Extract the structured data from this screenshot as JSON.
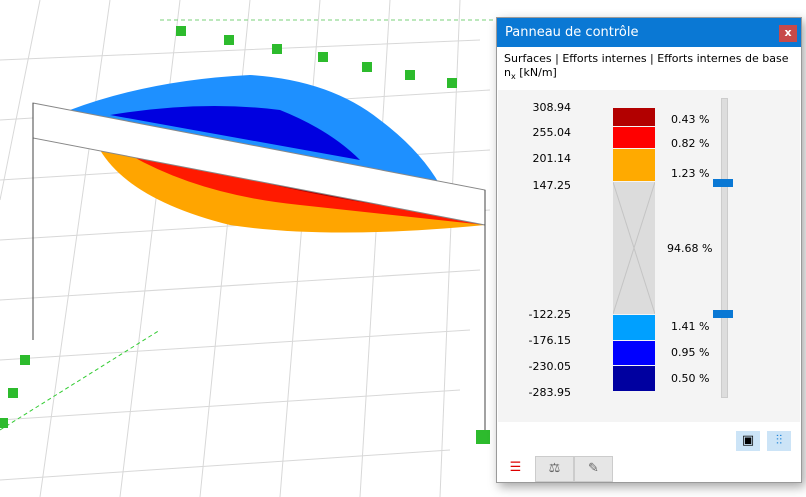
{
  "panel": {
    "title": "Panneau de contrôle",
    "close_label": "x",
    "breadcrumb": "Surfaces | Efforts internes | Efforts internes de base",
    "quantity": "n",
    "quantity_sub": "x",
    "unit": "[kN/m]"
  },
  "legend": {
    "values": [
      "308.94",
      "255.04",
      "201.14",
      "147.25",
      "-122.25",
      "-176.15",
      "-230.05",
      "-283.95"
    ],
    "bands": [
      {
        "color": "#b20000",
        "percent": "0.43 %"
      },
      {
        "color": "#ff0000",
        "percent": "0.82 %"
      },
      {
        "color": "#ffaa00",
        "percent": "1.23 %"
      },
      {
        "color": "#dcdcdc",
        "percent": "94.68 %"
      },
      {
        "color": "#00a0ff",
        "percent": "1.41 %"
      },
      {
        "color": "#0000ff",
        "percent": "0.95 %"
      },
      {
        "color": "#0000a0",
        "percent": "0.50 %"
      }
    ]
  },
  "buttons": [
    {
      "icon": "display-settings-icon"
    },
    {
      "icon": "color-scale-adjust-icon"
    }
  ],
  "tabs": [
    {
      "icon": "color-legend-icon",
      "active": true
    },
    {
      "icon": "balance-icon"
    },
    {
      "icon": "result-filter-icon"
    }
  ],
  "accent": "#0a78d4"
}
